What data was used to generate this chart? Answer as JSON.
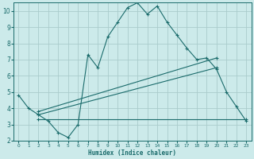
{
  "xlabel": "Humidex (Indice chaleur)",
  "bg_color": "#cceaea",
  "grid_color": "#aacccc",
  "line_color": "#1a6b6b",
  "xlim": [
    -0.5,
    23.5
  ],
  "ylim": [
    2,
    10.5
  ],
  "yticks": [
    2,
    3,
    4,
    5,
    6,
    7,
    8,
    9,
    10
  ],
  "xticks": [
    0,
    1,
    2,
    3,
    4,
    5,
    6,
    7,
    8,
    9,
    10,
    11,
    12,
    13,
    14,
    15,
    16,
    17,
    18,
    19,
    20,
    21,
    22,
    23
  ],
  "curve1_x": [
    0,
    1,
    2,
    3,
    4,
    5,
    6,
    7,
    8,
    9,
    10,
    11,
    12,
    13,
    14,
    15,
    16,
    17,
    18,
    19,
    20,
    21,
    22,
    23
  ],
  "curve1_y": [
    4.8,
    4.0,
    3.6,
    3.2,
    2.5,
    2.2,
    3.0,
    7.3,
    6.5,
    8.4,
    9.3,
    10.2,
    10.5,
    9.8,
    10.3,
    9.3,
    8.5,
    7.7,
    7.0,
    7.1,
    6.4,
    5.0,
    4.1,
    3.2
  ],
  "curve2_x": [
    2,
    23
  ],
  "curve2_y": [
    3.3,
    3.3
  ],
  "curve3_x": [
    2,
    20
  ],
  "curve3_y": [
    3.6,
    6.5
  ],
  "curve4_x": [
    2,
    20
  ],
  "curve4_y": [
    3.8,
    7.1
  ]
}
